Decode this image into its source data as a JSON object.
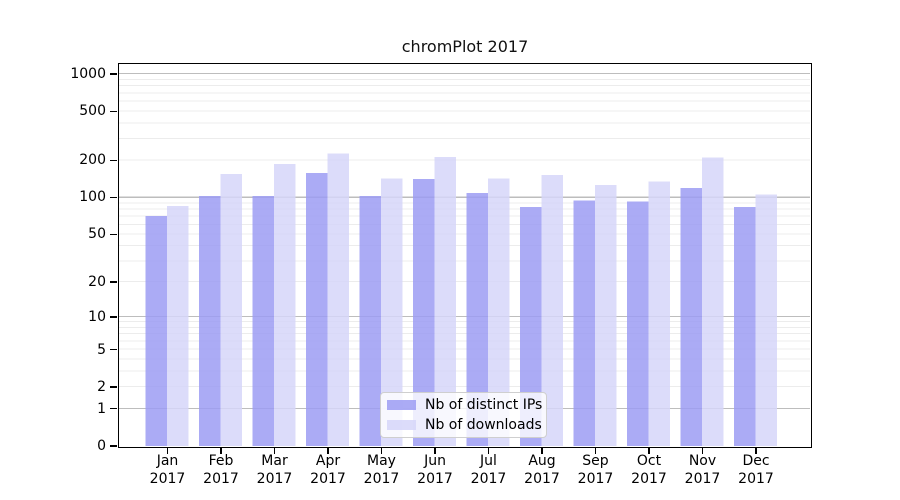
{
  "chart_data": {
    "type": "bar",
    "title": "chromPlot 2017",
    "categories": [
      "Jan",
      "Feb",
      "Mar",
      "Apr",
      "May",
      "Jun",
      "Jul",
      "Aug",
      "Sep",
      "Oct",
      "Nov",
      "Dec"
    ],
    "x_year_label": "2017",
    "series": [
      {
        "name": "Nb of distinct IPs",
        "color": "#9c9cf3",
        "values": [
          70,
          102,
          102,
          157,
          102,
          140,
          108,
          83,
          94,
          92,
          119,
          83
        ]
      },
      {
        "name": "Nb of downloads",
        "color": "#d6d6f9",
        "values": [
          85,
          155,
          186,
          227,
          142,
          212,
          142,
          152,
          126,
          134,
          209,
          105
        ]
      }
    ],
    "y_ticks": [
      1000,
      500,
      200,
      100,
      50,
      20,
      10,
      5,
      2,
      1,
      0
    ],
    "y_scale": "log10(value+1)",
    "ylim": [
      0,
      1230
    ],
    "grid": true,
    "legend_position": "inside-bottom-center",
    "colors": {
      "major_grid": "#bdbdbd",
      "minor_grid": "#ececec",
      "axis": "#000000",
      "background": "#ffffff"
    }
  }
}
